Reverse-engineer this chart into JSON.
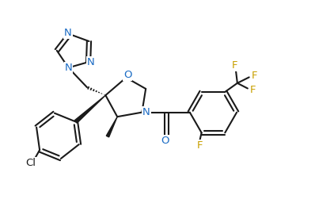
{
  "bg_color": "#ffffff",
  "line_color": "#1a1a1a",
  "atom_color_N": "#1a6bc4",
  "atom_color_O": "#1a6bc4",
  "atom_color_F": "#c8a000",
  "atom_color_Cl": "#1a1a1a",
  "line_width": 1.5,
  "font_size_atom": 9.5,
  "figsize": [
    3.98,
    2.61
  ],
  "dpi": 100,
  "xlim": [
    0,
    10.5
  ],
  "ylim": [
    0,
    7.0
  ]
}
